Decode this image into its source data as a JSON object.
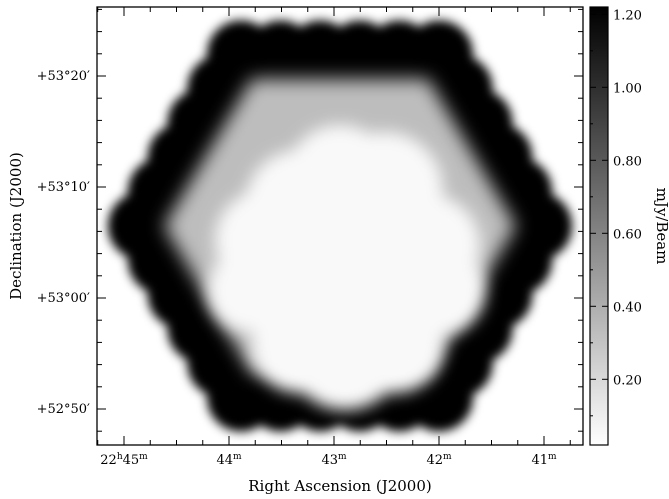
{
  "chart_data": {
    "type": "heatmap",
    "title": "",
    "xlabel": "Right Ascension (J2000)",
    "ylabel": "Declination (J2000)",
    "x_ticks": [
      {
        "text": "22h45m",
        "value": 45
      },
      {
        "text": "44m",
        "value": 44
      },
      {
        "text": "43m",
        "value": 43
      },
      {
        "text": "42m",
        "value": 42
      },
      {
        "text": "41m",
        "value": 41
      }
    ],
    "y_ticks": [
      {
        "text": "+53°20′",
        "value": 20
      },
      {
        "text": "+53°10′",
        "value": 10
      },
      {
        "text": "+53°00′",
        "value": 0
      },
      {
        "text": "+52°50′",
        "value": -10
      }
    ],
    "colorbar": {
      "label": "mJy/Beam",
      "ticks": [
        "1.20",
        "1.00",
        "0.80",
        "0.60",
        "0.40",
        "0.20"
      ],
      "tick_values": [
        1.2,
        1.0,
        0.8,
        0.6,
        0.4,
        0.2
      ],
      "range": [
        0.02,
        1.22
      ],
      "cmap": "gray_r"
    },
    "noise_levels": {
      "outer_rim": 1.22,
      "intermediate_hexagon": 0.33,
      "central_deep_region": 0.05
    },
    "colors": {
      "frame": "#000000",
      "background": "#ffffff",
      "cmap_low": "#ffffff",
      "cmap_high": "#000000"
    }
  }
}
